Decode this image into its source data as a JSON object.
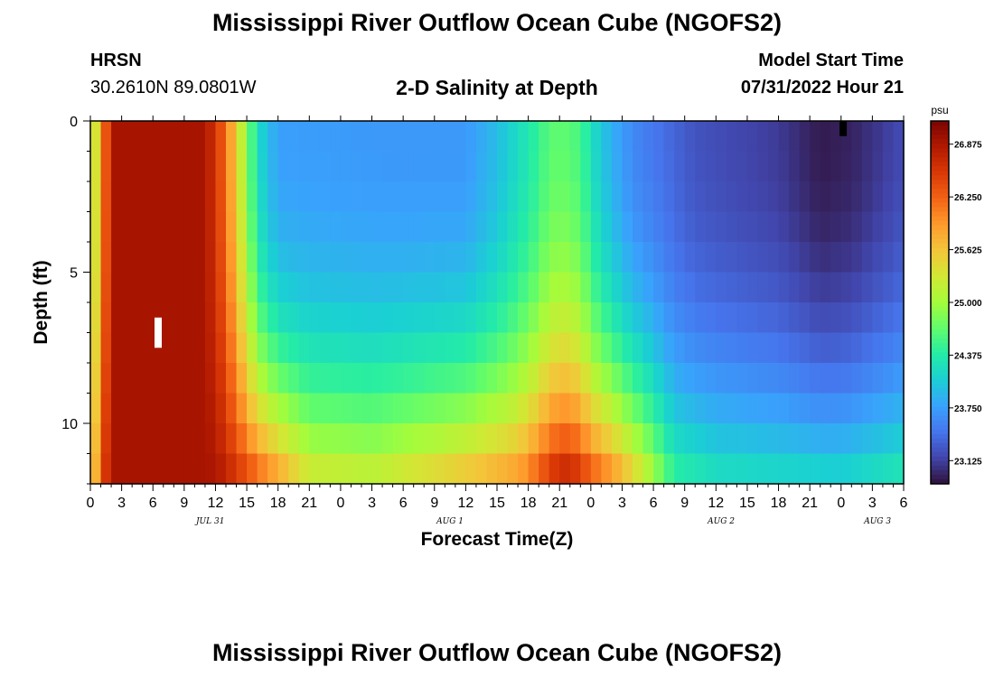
{
  "header": {
    "title": "Mississippi River Outflow Ocean Cube (NGOFS2)",
    "station": "HRSN",
    "coords": "30.2610N  89.0801W",
    "subtitle": "2-D Salinity at Depth",
    "model_start_label": "Model Start Time",
    "model_start_value": "07/31/2022 Hour 21"
  },
  "footer": {
    "title": "Mississippi River Outflow Ocean Cube (NGOFS2)"
  },
  "colors": {
    "colormap": [
      "#30123b",
      "#4145ab",
      "#4675ed",
      "#39a2fc",
      "#1bcfd4",
      "#24eca6",
      "#61fc6c",
      "#a4fc3b",
      "#d1e834",
      "#f3c63a",
      "#fe9b2d",
      "#f36315",
      "#d93806",
      "#b11901",
      "#7a0402"
    ]
  },
  "chart_data": {
    "type": "heatmap",
    "title": "2-D Salinity at Depth",
    "xlabel": "Forecast Time(Z)",
    "ylabel": "Depth (ft)",
    "colorbar_label": "psu",
    "colorbar_ticks": [
      "26.875",
      "26.250",
      "25.625",
      "25.000",
      "24.375",
      "23.750",
      "23.125"
    ],
    "colorbar_values": [
      26.875,
      26.25,
      25.625,
      25.0,
      24.375,
      23.75,
      23.125
    ],
    "vmin": 22.85,
    "vmax": 27.15,
    "xlim": [
      0,
      78
    ],
    "ylim": [
      0,
      12
    ],
    "y_ticks": [
      0,
      5,
      10
    ],
    "x_ticks": [
      0,
      3,
      6,
      9,
      12,
      15,
      18,
      21,
      24,
      27,
      30,
      33,
      36,
      39,
      42,
      45,
      48,
      51,
      54,
      57,
      60,
      63,
      66,
      69,
      72,
      75,
      78
    ],
    "x_tick_labels": [
      "0",
      "3",
      "6",
      "9",
      "12",
      "15",
      "18",
      "21",
      "0",
      "3",
      "6",
      "9",
      "12",
      "15",
      "18",
      "21",
      "0",
      "3",
      "6",
      "9",
      "12",
      "15",
      "18",
      "21",
      "0",
      "3",
      "6"
    ],
    "date_labels": [
      {
        "hour": 11.5,
        "label": "JUL 31"
      },
      {
        "hour": 34.5,
        "label": "AUG 1"
      },
      {
        "hour": 60.5,
        "label": "AUG 2"
      },
      {
        "hour": 75.5,
        "label": "AUG 3"
      }
    ],
    "markers": [
      {
        "name": "current-time-marker",
        "hour": 6.5,
        "depth_top": 6.5,
        "depth_bottom": 7.5,
        "color": "#ffffff"
      },
      {
        "name": "forecast-start-marker",
        "hour": 72.2,
        "depth_top": 0.0,
        "depth_bottom": 0.5,
        "color": "#000000"
      }
    ],
    "field": {
      "time_step_hours": 1,
      "depth_step_ft": 1,
      "description": "salinity (psu) on a 78 x 12 hour-by-foot grid"
    }
  }
}
